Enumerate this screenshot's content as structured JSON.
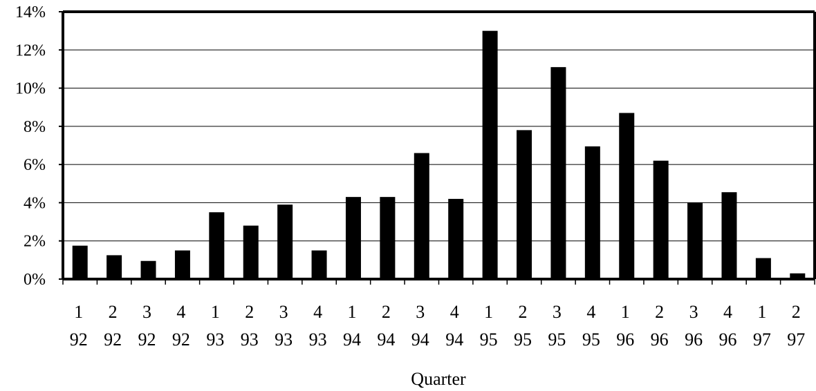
{
  "chart_data": {
    "type": "bar",
    "title": "",
    "xlabel": "Quarter",
    "ylabel": "",
    "ylim": [
      0,
      14
    ],
    "yticks": [
      "0%",
      "2%",
      "4%",
      "6%",
      "8%",
      "10%",
      "12%",
      "14%"
    ],
    "grid": true,
    "legend": "none",
    "bar_color": "#000000",
    "categories": [
      {
        "q": "1",
        "y": "92"
      },
      {
        "q": "2",
        "y": "92"
      },
      {
        "q": "3",
        "y": "92"
      },
      {
        "q": "4",
        "y": "92"
      },
      {
        "q": "1",
        "y": "93"
      },
      {
        "q": "2",
        "y": "93"
      },
      {
        "q": "3",
        "y": "93"
      },
      {
        "q": "4",
        "y": "93"
      },
      {
        "q": "1",
        "y": "94"
      },
      {
        "q": "2",
        "y": "94"
      },
      {
        "q": "3",
        "y": "94"
      },
      {
        "q": "4",
        "y": "94"
      },
      {
        "q": "1",
        "y": "95"
      },
      {
        "q": "2",
        "y": "95"
      },
      {
        "q": "3",
        "y": "95"
      },
      {
        "q": "4",
        "y": "95"
      },
      {
        "q": "1",
        "y": "96"
      },
      {
        "q": "2",
        "y": "96"
      },
      {
        "q": "3",
        "y": "96"
      },
      {
        "q": "4",
        "y": "96"
      },
      {
        "q": "1",
        "y": "97"
      },
      {
        "q": "2",
        "y": "97"
      }
    ],
    "values": [
      1.75,
      1.25,
      0.95,
      1.5,
      3.5,
      2.8,
      3.9,
      1.5,
      4.3,
      4.3,
      6.6,
      4.2,
      13.0,
      7.8,
      11.1,
      6.95,
      8.7,
      6.2,
      4.0,
      4.55,
      1.1,
      0.3
    ]
  }
}
